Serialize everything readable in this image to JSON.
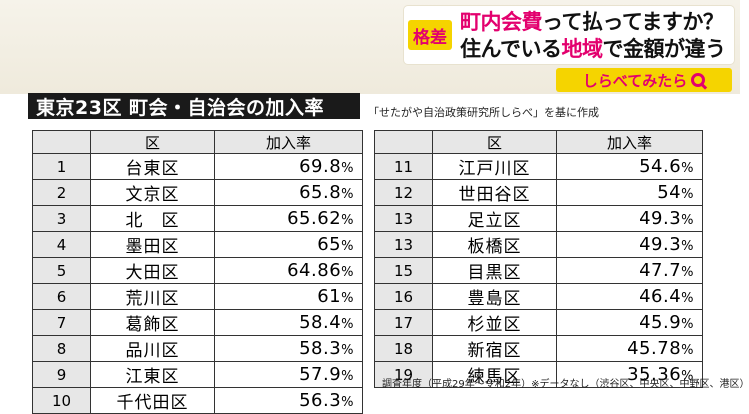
{
  "header": {
    "badge": "格差",
    "line1_pink": "町内会費",
    "line1_rest": "って払ってますか？",
    "line2_a": "住んでいる",
    "line2_pink": "地域",
    "line2_b": "で金額が違う",
    "logo": "しらべてみたら",
    "logo_icon": "magnifier-icon"
  },
  "title": "東京23区 町会・自治会の加入率",
  "source": "「せたがや自治政策研究所しらべ」を基に作成",
  "columns": {
    "ward": "区",
    "rate": "加入率"
  },
  "pct_symbol": "%",
  "left_rows": [
    {
      "rank": "1",
      "ward": "台東区",
      "rate": "69.8"
    },
    {
      "rank": "2",
      "ward": "文京区",
      "rate": "65.8"
    },
    {
      "rank": "3",
      "ward": "北　区",
      "rate": "65.62"
    },
    {
      "rank": "4",
      "ward": "墨田区",
      "rate": "65"
    },
    {
      "rank": "5",
      "ward": "大田区",
      "rate": "64.86"
    },
    {
      "rank": "6",
      "ward": "荒川区",
      "rate": "61"
    },
    {
      "rank": "7",
      "ward": "葛飾区",
      "rate": "58.4"
    },
    {
      "rank": "8",
      "ward": "品川区",
      "rate": "58.3"
    },
    {
      "rank": "9",
      "ward": "江東区",
      "rate": "57.9"
    },
    {
      "rank": "10",
      "ward": "千代田区",
      "rate": "56.3"
    }
  ],
  "right_rows": [
    {
      "rank": "11",
      "ward": "江戸川区",
      "rate": "54.6"
    },
    {
      "rank": "12",
      "ward": "世田谷区",
      "rate": "54"
    },
    {
      "rank": "13",
      "ward": "足立区",
      "rate": "49.3"
    },
    {
      "rank": "13",
      "ward": "板橋区",
      "rate": "49.3"
    },
    {
      "rank": "15",
      "ward": "目黒区",
      "rate": "47.7"
    },
    {
      "rank": "16",
      "ward": "豊島区",
      "rate": "46.4"
    },
    {
      "rank": "17",
      "ward": "杉並区",
      "rate": "45.9"
    },
    {
      "rank": "18",
      "ward": "新宿区",
      "rate": "45.78"
    },
    {
      "rank": "19",
      "ward": "練馬区",
      "rate": "35.36"
    }
  ],
  "note": "調査年度（平成29年～令和2年）※データなし（渋谷区、中央区、中野区、港区）"
}
